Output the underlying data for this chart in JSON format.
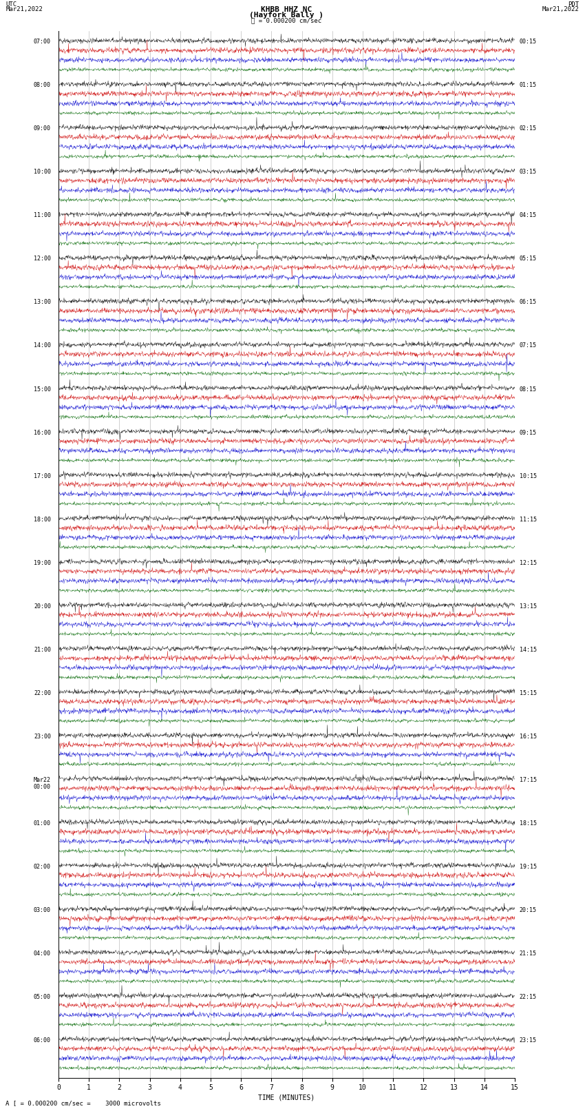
{
  "title_line1": "KHBB HHZ NC",
  "title_line2": "(Hayfork Bally )",
  "scale_label": "= 0.000200 cm/sec",
  "bottom_label": "A [ = 0.000200 cm/sec =    3000 microvolts",
  "xlabel": "TIME (MINUTES)",
  "utc_label": "UTC",
  "pdt_label": "PDT",
  "date_left": "Mar21,2022",
  "date_right": "Mar21,2022",
  "bg_color": "#ffffff",
  "trace_colors": [
    "#000000",
    "#cc0000",
    "#0000cc",
    "#006600"
  ],
  "trace_amplitudes": [
    0.28,
    0.3,
    0.28,
    0.2
  ],
  "rows": [
    {
      "left_label": "07:00",
      "right_label": "00:15"
    },
    {
      "left_label": "08:00",
      "right_label": "01:15"
    },
    {
      "left_label": "09:00",
      "right_label": "02:15"
    },
    {
      "left_label": "10:00",
      "right_label": "03:15"
    },
    {
      "left_label": "11:00",
      "right_label": "04:15"
    },
    {
      "left_label": "12:00",
      "right_label": "05:15"
    },
    {
      "left_label": "13:00",
      "right_label": "06:15"
    },
    {
      "left_label": "14:00",
      "right_label": "07:15"
    },
    {
      "left_label": "15:00",
      "right_label": "08:15"
    },
    {
      "left_label": "16:00",
      "right_label": "09:15"
    },
    {
      "left_label": "17:00",
      "right_label": "10:15"
    },
    {
      "left_label": "18:00",
      "right_label": "11:15"
    },
    {
      "left_label": "19:00",
      "right_label": "12:15"
    },
    {
      "left_label": "20:00",
      "right_label": "13:15"
    },
    {
      "left_label": "21:00",
      "right_label": "14:15"
    },
    {
      "left_label": "22:00",
      "right_label": "15:15"
    },
    {
      "left_label": "23:00",
      "right_label": "16:15"
    },
    {
      "left_label": "Mar22\n00:00",
      "right_label": "17:15"
    },
    {
      "left_label": "01:00",
      "right_label": "18:15"
    },
    {
      "left_label": "02:00",
      "right_label": "19:15"
    },
    {
      "left_label": "03:00",
      "right_label": "20:15"
    },
    {
      "left_label": "04:00",
      "right_label": "21:15"
    },
    {
      "left_label": "05:00",
      "right_label": "22:15"
    },
    {
      "left_label": "06:00",
      "right_label": "23:15"
    }
  ],
  "n_traces_per_row": 4,
  "minutes": 15,
  "samples_per_minute": 100,
  "font_size_title": 8,
  "font_size_labels": 6.5,
  "font_size_axis": 7,
  "font_size_row_labels": 6,
  "grid_color": "#999999",
  "grid_linewidth": 0.4
}
